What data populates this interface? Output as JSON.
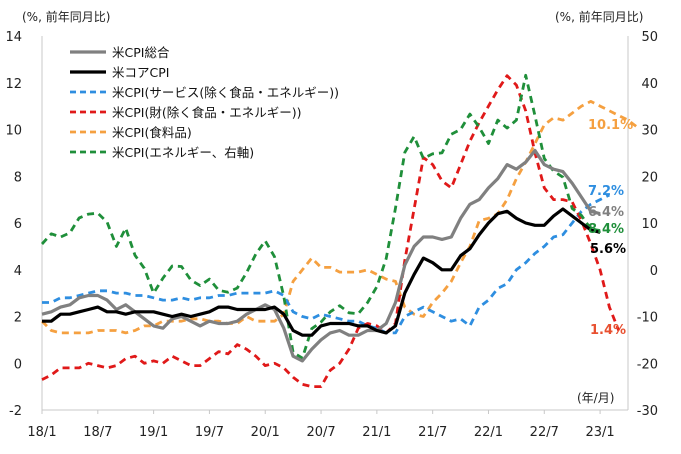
{
  "chart_data": {
    "type": "line",
    "left_unit_label": "(%, 前年同月比)",
    "right_unit_label": "(%, 前年同月比)",
    "x_unit_label": "(年/月)",
    "x_range": [
      0,
      63
    ],
    "x_ticks": [
      {
        "x": 0,
        "label": "18/1"
      },
      {
        "x": 6,
        "label": "18/7"
      },
      {
        "x": 12,
        "label": "19/1"
      },
      {
        "x": 18,
        "label": "19/7"
      },
      {
        "x": 24,
        "label": "20/1"
      },
      {
        "x": 30,
        "label": "20/7"
      },
      {
        "x": 36,
        "label": "21/1"
      },
      {
        "x": 42,
        "label": "21/7"
      },
      {
        "x": 48,
        "label": "22/1"
      },
      {
        "x": 54,
        "label": "22/7"
      },
      {
        "x": 60,
        "label": "23/1"
      }
    ],
    "y_left": {
      "min": -2,
      "max": 14,
      "ticks": [
        -2,
        0,
        2,
        4,
        6,
        8,
        10,
        12,
        14
      ]
    },
    "y_right": {
      "min": -30,
      "max": 50,
      "ticks": [
        -30,
        -20,
        -10,
        0,
        10,
        20,
        30,
        40,
        50
      ]
    },
    "series": [
      {
        "name": "米CPI総合",
        "color": "#808080",
        "style": "solid",
        "width": 3.2,
        "axis": "left",
        "values": [
          2.1,
          2.2,
          2.4,
          2.5,
          2.8,
          2.9,
          2.9,
          2.7,
          2.3,
          2.5,
          2.2,
          1.9,
          1.6,
          1.5,
          1.9,
          2.0,
          1.8,
          1.6,
          1.8,
          1.7,
          1.7,
          1.8,
          2.1,
          2.3,
          2.5,
          2.3,
          1.5,
          0.3,
          0.1,
          0.6,
          1.0,
          1.3,
          1.4,
          1.2,
          1.2,
          1.4,
          1.4,
          1.7,
          2.6,
          4.2,
          5.0,
          5.4,
          5.4,
          5.3,
          5.4,
          6.2,
          6.8,
          7.0,
          7.5,
          7.9,
          8.5,
          8.3,
          8.6,
          9.1,
          8.5,
          8.3,
          8.2,
          7.7,
          7.1,
          6.5,
          6.4
        ]
      },
      {
        "name": "米コアCPI",
        "color": "#000000",
        "style": "solid",
        "width": 3.2,
        "axis": "left",
        "values": [
          1.8,
          1.8,
          2.1,
          2.1,
          2.2,
          2.3,
          2.4,
          2.2,
          2.2,
          2.1,
          2.2,
          2.2,
          2.2,
          2.1,
          2.0,
          2.1,
          2.0,
          2.1,
          2.2,
          2.4,
          2.4,
          2.3,
          2.3,
          2.3,
          2.3,
          2.4,
          2.1,
          1.4,
          1.2,
          1.2,
          1.6,
          1.7,
          1.7,
          1.7,
          1.6,
          1.6,
          1.4,
          1.3,
          1.6,
          3.0,
          3.8,
          4.5,
          4.3,
          4.0,
          4.0,
          4.6,
          4.9,
          5.5,
          6.0,
          6.4,
          6.5,
          6.2,
          6.0,
          5.9,
          5.9,
          6.3,
          6.6,
          6.3,
          6.0,
          5.7,
          5.6
        ]
      },
      {
        "name": "米CPI(サービス(除く食品・エネルギー))",
        "color": "#2e8ee0",
        "style": "dashed",
        "width": 2.8,
        "axis": "left",
        "values": [
          2.6,
          2.6,
          2.8,
          2.8,
          2.9,
          3.0,
          3.1,
          3.1,
          3.0,
          3.0,
          2.9,
          2.9,
          2.8,
          2.7,
          2.7,
          2.8,
          2.7,
          2.8,
          2.8,
          2.9,
          2.9,
          3.0,
          3.0,
          3.0,
          3.0,
          3.1,
          2.9,
          2.2,
          2.0,
          1.9,
          2.1,
          2.0,
          1.9,
          1.8,
          1.8,
          1.6,
          1.5,
          1.3,
          1.3,
          2.0,
          2.2,
          2.4,
          2.2,
          2.0,
          1.8,
          1.9,
          1.6,
          2.4,
          2.7,
          3.2,
          3.4,
          4.0,
          4.3,
          4.7,
          5.0,
          5.4,
          5.5,
          6.0,
          6.5,
          6.8,
          7.0,
          7.2
        ]
      },
      {
        "name": "米CPI(財(除く食品・エネルギー))",
        "color": "#e01919",
        "style": "dashed",
        "width": 2.8,
        "axis": "left",
        "values": [
          -0.7,
          -0.5,
          -0.2,
          -0.2,
          -0.2,
          0.0,
          -0.1,
          -0.2,
          -0.1,
          0.2,
          0.3,
          0.0,
          0.1,
          0.0,
          0.3,
          0.1,
          -0.1,
          -0.1,
          0.2,
          0.5,
          0.4,
          0.8,
          0.6,
          0.3,
          -0.1,
          0.0,
          -0.2,
          -0.6,
          -0.9,
          -1.0,
          -1.0,
          -0.3,
          0.0,
          0.6,
          1.5,
          1.7,
          1.6,
          1.3,
          1.7,
          4.4,
          6.6,
          8.8,
          8.5,
          7.8,
          7.5,
          8.5,
          9.5,
          10.3,
          11.0,
          11.7,
          12.3,
          11.9,
          10.8,
          9.0,
          7.5,
          7.0,
          7.0,
          6.9,
          6.1,
          5.1,
          4.0,
          2.4,
          1.4
        ]
      },
      {
        "name": "米CPI(食料品)",
        "color": "#f5a040",
        "style": "dashed",
        "width": 2.8,
        "axis": "left",
        "values": [
          1.8,
          1.4,
          1.3,
          1.3,
          1.3,
          1.3,
          1.4,
          1.4,
          1.4,
          1.3,
          1.4,
          1.6,
          1.6,
          1.8,
          1.8,
          1.8,
          1.9,
          1.9,
          1.8,
          1.8,
          1.7,
          1.7,
          2.0,
          1.8,
          1.8,
          1.8,
          2.1,
          3.5,
          4.0,
          4.5,
          4.1,
          4.1,
          3.9,
          3.9,
          3.9,
          4.0,
          3.8,
          3.6,
          3.5,
          2.4,
          2.1,
          2.0,
          2.6,
          3.0,
          3.5,
          4.3,
          5.0,
          6.1,
          6.2,
          6.4,
          7.0,
          7.9,
          8.6,
          9.4,
          10.2,
          10.5,
          10.4,
          10.7,
          11.0,
          11.2,
          11.0,
          10.8,
          10.6,
          10.4,
          10.1
        ]
      },
      {
        "name": "米CPI(エネルギー、右軸)",
        "color": "#1f8f3a",
        "style": "dashed",
        "width": 2.8,
        "axis": "right",
        "values": [
          5.5,
          7.7,
          7.0,
          7.9,
          11.1,
          11.9,
          12.1,
          10.2,
          5.0,
          8.9,
          3.1,
          0.3,
          -5.0,
          -1.8,
          0.8,
          0.7,
          -2.2,
          -3.4,
          -2.0,
          -4.4,
          -4.8,
          -3.9,
          -0.6,
          3.4,
          6.2,
          2.8,
          -5.7,
          -17.7,
          -18.9,
          -12.6,
          -11.2,
          -9.0,
          -7.7,
          -9.2,
          -9.4,
          -7.0,
          -3.6,
          2.4,
          13.2,
          25.1,
          28.5,
          23.8,
          24.8,
          25.0,
          29.0,
          30.0,
          33.3,
          30.5,
          27.0,
          32.0,
          30.3,
          32.0,
          41.6,
          32.9,
          23.8,
          21.1,
          19.8,
          13.1,
          11.6,
          8.7,
          8.4
        ]
      }
    ],
    "end_labels": [
      {
        "text": "10.1%",
        "series": "米CPI(食料品)",
        "color": "#f5a040"
      },
      {
        "text": "7.2%",
        "series": "米CPI(サービス(除く食品・エネルギー))",
        "color": "#2e8ee0"
      },
      {
        "text": "6.4%",
        "series": "米CPI総合",
        "color": "#808080"
      },
      {
        "text": "8.4%",
        "series": "米CPI(エネルギー、右軸)",
        "color": "#1f8f3a"
      },
      {
        "text": "5.6%",
        "series": "米コアCPI",
        "color": "#000000"
      },
      {
        "text": "1.4%",
        "series": "米CPI(財(除く食品・エネルギー))",
        "color": "#e85030"
      }
    ]
  }
}
